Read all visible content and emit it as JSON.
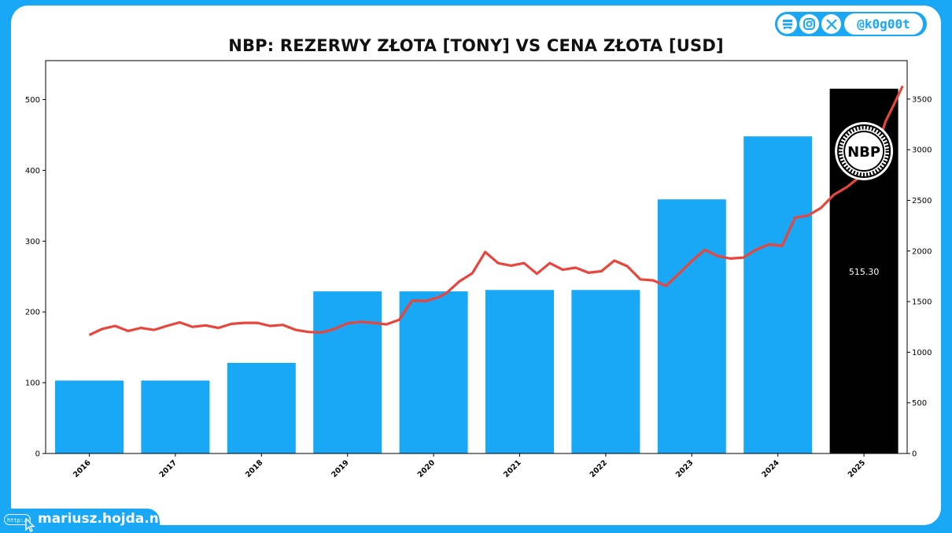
{
  "branding": {
    "handle": "@k0g00t",
    "site": "mariusz.hojda.net",
    "http_label": "http://",
    "logo_text": "NBP",
    "icons": [
      "book-icon",
      "instagram-icon",
      "x-icon"
    ]
  },
  "chart_data": {
    "type": "bar",
    "title": "NBP: REZERWY ZŁOTA [TONY] VS CENA ZŁOTA [USD]",
    "categories": [
      "2016",
      "2017",
      "2018",
      "2019",
      "2020",
      "2021",
      "2022",
      "2023",
      "2024",
      "2025"
    ],
    "series": [
      {
        "values": [
          103,
          103,
          128,
          229,
          229,
          231,
          231,
          359,
          448,
          515.3
        ],
        "axis": "left"
      },
      {
        "type": "line",
        "axis": "right",
        "x": [
          2016.0,
          2016.15,
          2016.3,
          2016.45,
          2016.6,
          2016.75,
          2016.9,
          2017.05,
          2017.2,
          2017.35,
          2017.5,
          2017.65,
          2017.8,
          2017.95,
          2018.1,
          2018.25,
          2018.4,
          2018.55,
          2018.7,
          2018.85,
          2019.0,
          2019.15,
          2019.3,
          2019.45,
          2019.6,
          2019.75,
          2019.9,
          2020.05,
          2020.15,
          2020.3,
          2020.45,
          2020.6,
          2020.75,
          2020.9,
          2021.05,
          2021.2,
          2021.35,
          2021.5,
          2021.65,
          2021.8,
          2021.95,
          2022.1,
          2022.25,
          2022.4,
          2022.55,
          2022.7,
          2022.85,
          2023.0,
          2023.15,
          2023.3,
          2023.45,
          2023.6,
          2023.75,
          2023.9,
          2024.05,
          2024.2,
          2024.35,
          2024.5,
          2024.65,
          2024.8,
          2024.95,
          2025.1,
          2025.25,
          2025.35,
          2025.45
        ],
        "y": [
          1170,
          1230,
          1260,
          1210,
          1240,
          1220,
          1260,
          1295,
          1250,
          1265,
          1240,
          1280,
          1290,
          1290,
          1260,
          1270,
          1220,
          1200,
          1195,
          1230,
          1285,
          1300,
          1290,
          1275,
          1320,
          1510,
          1505,
          1540,
          1585,
          1700,
          1780,
          1990,
          1880,
          1855,
          1880,
          1775,
          1880,
          1815,
          1835,
          1785,
          1800,
          1905,
          1850,
          1720,
          1710,
          1655,
          1775,
          1900,
          2010,
          1950,
          1925,
          1935,
          2015,
          2065,
          2050,
          2330,
          2350,
          2425,
          2555,
          2630,
          2730,
          2860,
          3280,
          3450,
          3630
        ]
      }
    ],
    "y_left_ticks": [
      0,
      100,
      200,
      300,
      400,
      500
    ],
    "y_right_ticks": [
      0,
      500,
      1000,
      1500,
      2000,
      2500,
      3000,
      3500
    ],
    "ylim_left": [
      0,
      555
    ],
    "ylim_right": [
      0,
      3880
    ],
    "highlight_index": 9,
    "highlight_label": "515.30",
    "colors": {
      "bar": "#18a8f5",
      "highlight": "#000000",
      "line": "#e8453c"
    },
    "grid": false
  }
}
